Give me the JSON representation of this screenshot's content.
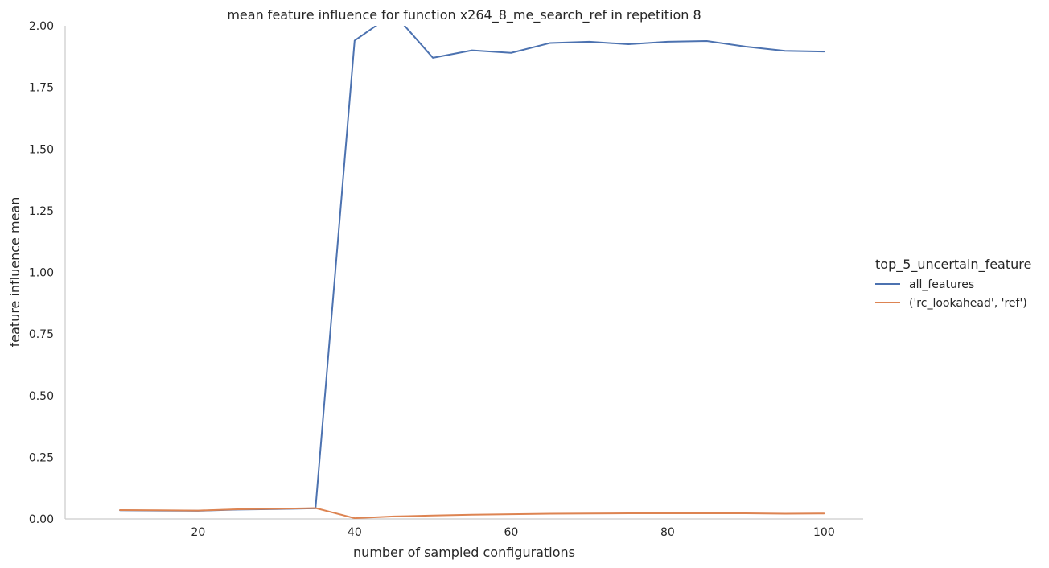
{
  "chart_data": {
    "type": "line",
    "title": "mean feature influence for function x264_8_me_search_ref in repetition 8",
    "xlabel": "number of sampled configurations",
    "ylabel": "feature influence mean",
    "xlim": [
      3,
      105
    ],
    "ylim": [
      0,
      2.0
    ],
    "xticks": [
      "20",
      "40",
      "60",
      "80",
      "100"
    ],
    "yticks": [
      "0.00",
      "0.25",
      "0.50",
      "0.75",
      "1.00",
      "1.25",
      "1.50",
      "1.75",
      "2.00"
    ],
    "grid": false,
    "legend": {
      "title": "top_5_uncertain_feature",
      "placement": "right"
    },
    "series": [
      {
        "name": "all_features",
        "color": "#4c72b0",
        "x": [
          10,
          15,
          20,
          25,
          30,
          35,
          40,
          45,
          50,
          55,
          60,
          65,
          70,
          75,
          80,
          85,
          90,
          95,
          100
        ],
        "values": [
          0.035,
          0.034,
          0.033,
          0.038,
          0.04,
          0.043,
          1.94,
          2.05,
          1.87,
          1.9,
          1.89,
          1.93,
          1.935,
          1.925,
          1.935,
          1.938,
          1.915,
          1.898,
          1.895
        ]
      },
      {
        "name": "('rc_lookahead', 'ref')",
        "color": "#dd8452",
        "x": [
          10,
          15,
          20,
          25,
          30,
          35,
          40,
          45,
          50,
          55,
          60,
          65,
          70,
          75,
          80,
          85,
          90,
          95,
          100
        ],
        "values": [
          0.036,
          0.035,
          0.034,
          0.039,
          0.041,
          0.044,
          0.003,
          0.01,
          0.014,
          0.017,
          0.019,
          0.021,
          0.022,
          0.023,
          0.023,
          0.023,
          0.023,
          0.021,
          0.022
        ]
      }
    ]
  }
}
